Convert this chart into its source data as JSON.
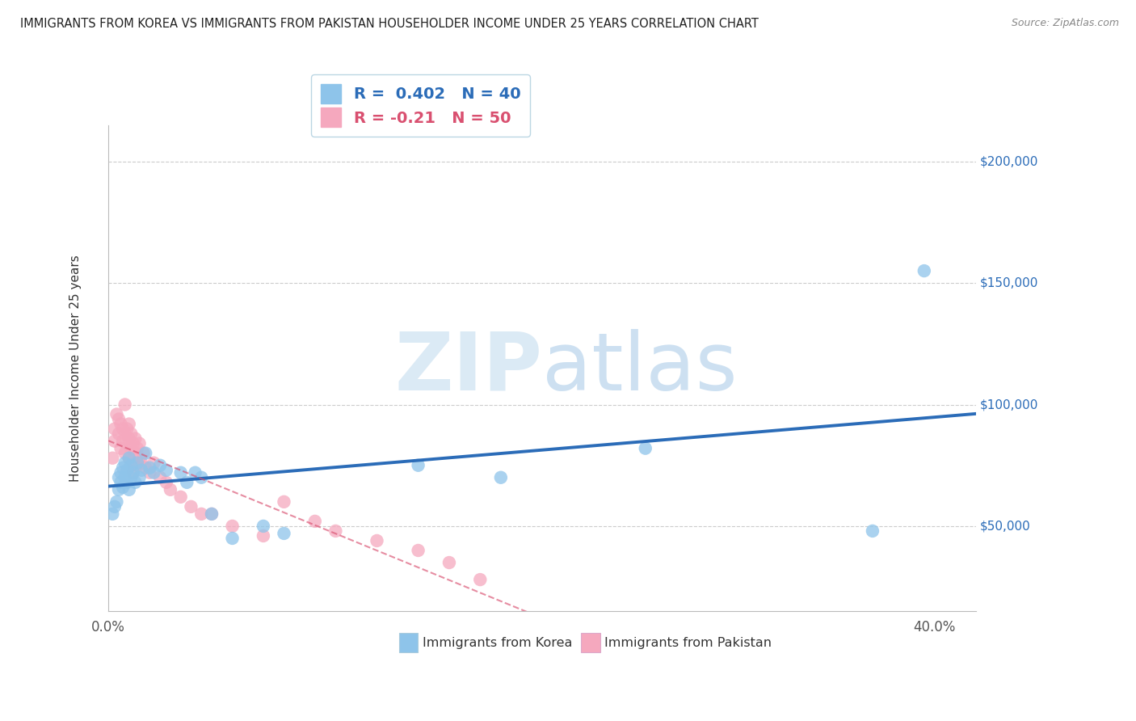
{
  "title": "IMMIGRANTS FROM KOREA VS IMMIGRANTS FROM PAKISTAN HOUSEHOLDER INCOME UNDER 25 YEARS CORRELATION CHART",
  "source": "Source: ZipAtlas.com",
  "ylabel": "Householder Income Under 25 years",
  "xlim": [
    0.0,
    0.42
  ],
  "ylim": [
    15000,
    215000
  ],
  "ytick_values": [
    50000,
    100000,
    150000,
    200000
  ],
  "ytick_labels": [
    "$50,000",
    "$100,000",
    "$150,000",
    "$200,000"
  ],
  "korea_R": 0.402,
  "korea_N": 40,
  "pakistan_R": -0.21,
  "pakistan_N": 50,
  "korea_color": "#8EC4EA",
  "pakistan_color": "#F5A8BE",
  "korea_line_color": "#2B6CB8",
  "pakistan_line_color": "#D95070",
  "watermark_zip": "ZIP",
  "watermark_atlas": "atlas",
  "background_color": "#FFFFFF",
  "korea_x": [
    0.002,
    0.003,
    0.004,
    0.005,
    0.005,
    0.006,
    0.006,
    0.007,
    0.007,
    0.008,
    0.008,
    0.009,
    0.009,
    0.01,
    0.01,
    0.011,
    0.011,
    0.012,
    0.013,
    0.014,
    0.015,
    0.016,
    0.018,
    0.02,
    0.022,
    0.025,
    0.028,
    0.035,
    0.038,
    0.042,
    0.045,
    0.05,
    0.06,
    0.075,
    0.085,
    0.15,
    0.19,
    0.26,
    0.37,
    0.395
  ],
  "korea_y": [
    55000,
    58000,
    60000,
    65000,
    70000,
    68000,
    72000,
    66000,
    74000,
    70000,
    76000,
    68000,
    73000,
    65000,
    78000,
    70000,
    75000,
    72000,
    68000,
    76000,
    70000,
    73000,
    80000,
    74000,
    72000,
    75000,
    73000,
    72000,
    68000,
    72000,
    70000,
    55000,
    45000,
    50000,
    47000,
    75000,
    70000,
    82000,
    48000,
    155000
  ],
  "pakistan_x": [
    0.002,
    0.003,
    0.003,
    0.004,
    0.005,
    0.005,
    0.006,
    0.006,
    0.007,
    0.007,
    0.008,
    0.008,
    0.009,
    0.009,
    0.01,
    0.01,
    0.01,
    0.011,
    0.011,
    0.012,
    0.012,
    0.013,
    0.013,
    0.014,
    0.014,
    0.015,
    0.015,
    0.016,
    0.017,
    0.018,
    0.02,
    0.022,
    0.025,
    0.028,
    0.03,
    0.035,
    0.04,
    0.045,
    0.06,
    0.075,
    0.085,
    0.1,
    0.11,
    0.13,
    0.15,
    0.165,
    0.18,
    0.05,
    0.008,
    0.012
  ],
  "pakistan_y": [
    78000,
    85000,
    90000,
    96000,
    88000,
    94000,
    82000,
    92000,
    85000,
    90000,
    80000,
    88000,
    84000,
    90000,
    78000,
    86000,
    92000,
    82000,
    88000,
    76000,
    84000,
    80000,
    86000,
    75000,
    82000,
    78000,
    84000,
    76000,
    80000,
    74000,
    72000,
    76000,
    70000,
    68000,
    65000,
    62000,
    58000,
    55000,
    50000,
    46000,
    60000,
    52000,
    48000,
    44000,
    40000,
    35000,
    28000,
    55000,
    100000,
    72000
  ]
}
